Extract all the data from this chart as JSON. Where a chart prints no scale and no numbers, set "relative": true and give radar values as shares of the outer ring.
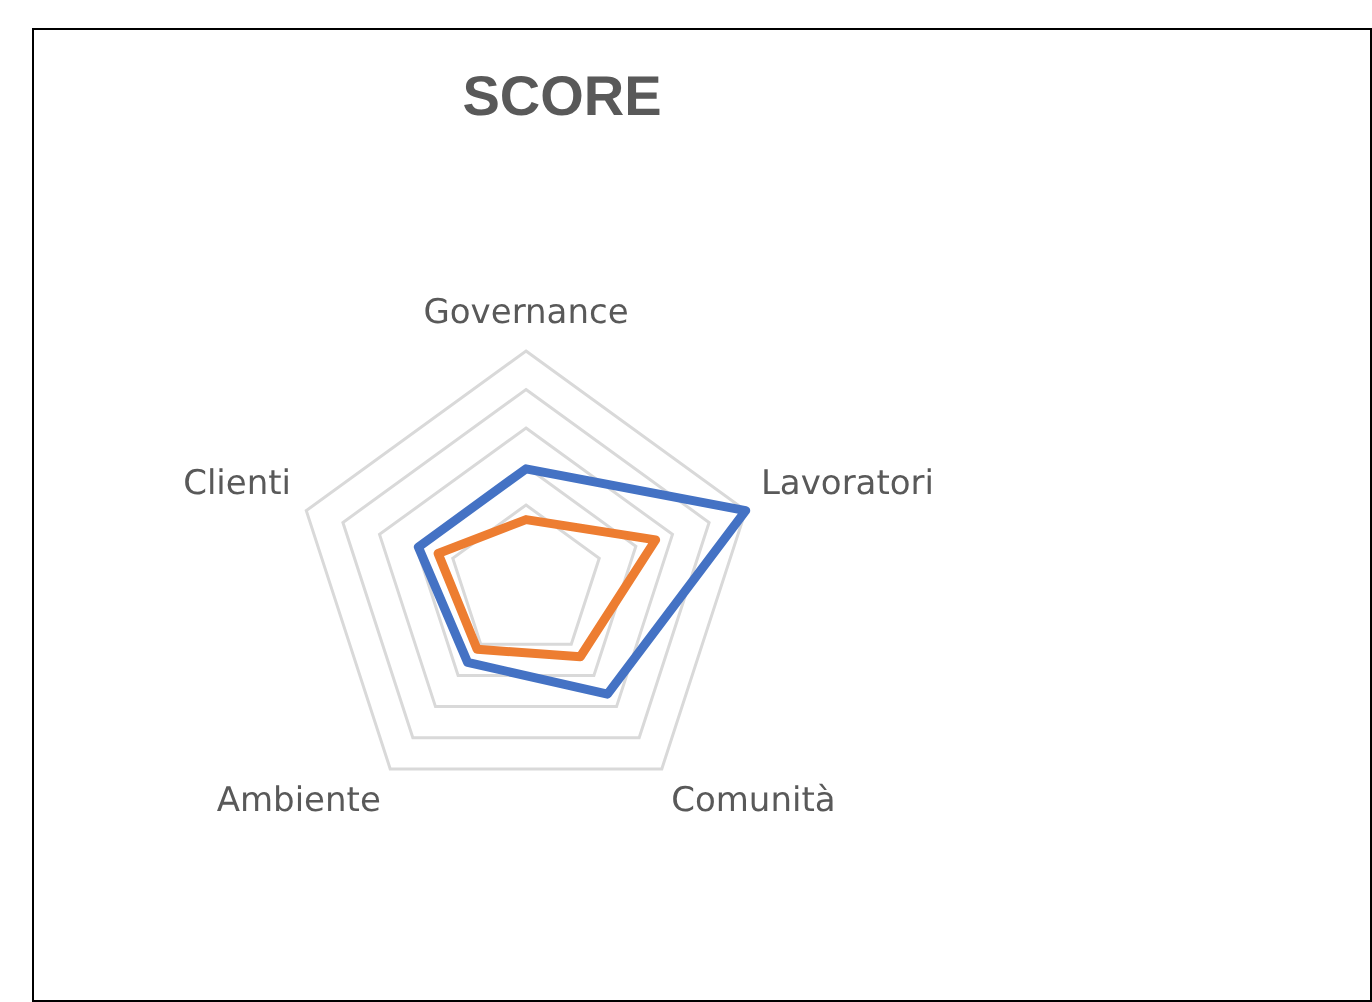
{
  "chart_data": {
    "type": "radar",
    "title": "SCORE",
    "relative": true,
    "categories": [
      "Governance",
      "Lavoratori",
      "Comunità",
      "Ambiente",
      "Clienti"
    ],
    "legend": false,
    "marker": "none",
    "series": [
      {
        "color": "#4472c4",
        "values": [
          0.49,
          1.0,
          0.6,
          0.43,
          0.49
        ]
      },
      {
        "color": "#ed7d31",
        "values": [
          0.27,
          0.59,
          0.4,
          0.36,
          0.4
        ]
      }
    ]
  }
}
